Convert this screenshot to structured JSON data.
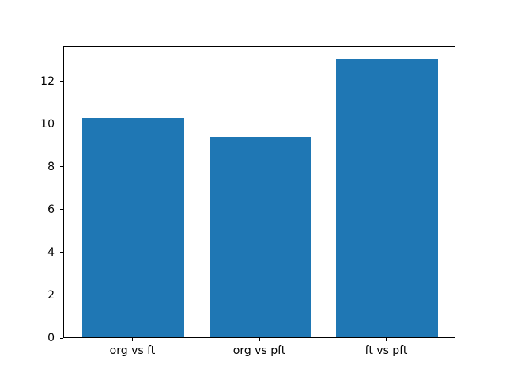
{
  "chart_data": {
    "type": "bar",
    "categories": [
      "org vs ft",
      "org vs pft",
      "ft vs pft"
    ],
    "values": [
      10.25,
      9.35,
      13.0
    ],
    "title": "",
    "xlabel": "",
    "ylabel": "",
    "ylim": [
      0,
      13.65
    ],
    "yticks": [
      0,
      2,
      4,
      6,
      8,
      10,
      12
    ],
    "bar_color": "#1f77b4",
    "axis_color": "#000000",
    "background_color": "#ffffff",
    "grid": false,
    "legend": null
  }
}
